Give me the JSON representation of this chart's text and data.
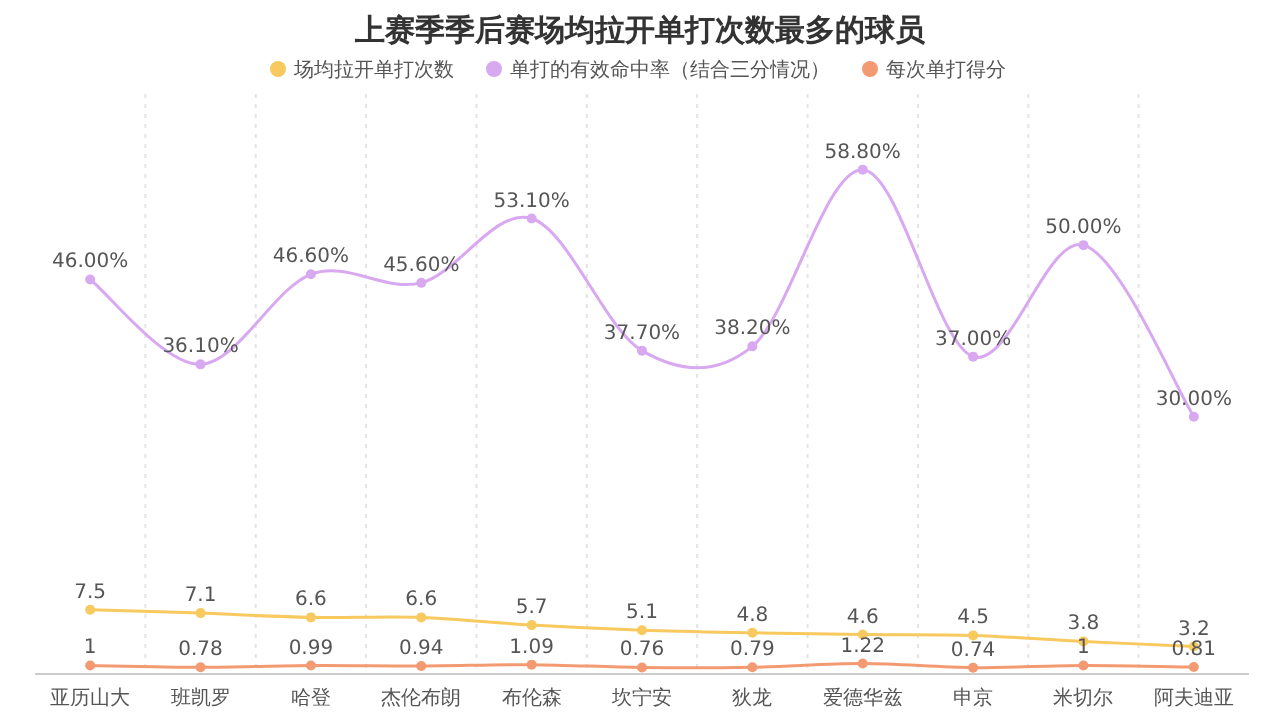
{
  "chart_data": {
    "type": "line",
    "title": "上赛季季后赛场均拉开单打次数最多的球员",
    "categories": [
      "亚历山大",
      "班凯罗",
      "哈登",
      "杰伦布朗",
      "布伦森",
      "坎宁安",
      "狄龙",
      "爱德华兹",
      "申京",
      "米切尔",
      "阿夫迪亚"
    ],
    "series": [
      {
        "name": "场均拉开单打次数",
        "color": "#f7c95e",
        "values": [
          7.5,
          7.1,
          6.6,
          6.6,
          5.7,
          5.1,
          4.8,
          4.6,
          4.5,
          3.8,
          3.2
        ],
        "value_labels": [
          "7.5",
          "7.1",
          "6.6",
          "6.6",
          "5.7",
          "5.1",
          "4.8",
          "4.6",
          "4.5",
          "3.8",
          "3.2"
        ]
      },
      {
        "name": "单打的有效命中率（结合三分情况）",
        "color": "#d8a8f0",
        "values": [
          46.0,
          36.1,
          46.6,
          45.6,
          53.1,
          37.7,
          38.2,
          58.8,
          37.0,
          50.0,
          30.0
        ],
        "value_labels": [
          "46.00%",
          "36.10%",
          "46.60%",
          "45.60%",
          "53.10%",
          "37.70%",
          "38.20%",
          "58.80%",
          "37.00%",
          "50.00%",
          "30.00%"
        ]
      },
      {
        "name": "每次单打得分",
        "color": "#f49a72",
        "values": [
          1,
          0.78,
          0.99,
          0.94,
          1.09,
          0.76,
          0.79,
          1.22,
          0.74,
          1,
          0.81
        ],
        "value_labels": [
          "1",
          "0.78",
          "0.99",
          "0.94",
          "1.09",
          "0.76",
          "0.79",
          "1.22",
          "0.74",
          "1",
          "0.81"
        ]
      }
    ],
    "legend": "top",
    "grid": "x",
    "marker": "circle",
    "line_style": "solid"
  }
}
